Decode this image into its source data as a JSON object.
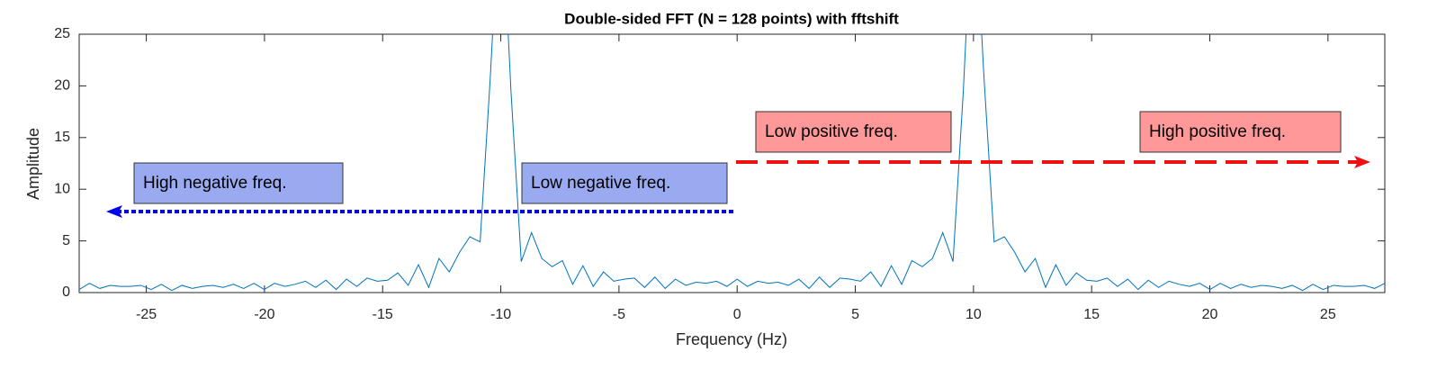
{
  "chart_data": {
    "type": "line",
    "title": "Double-sided FFT (N = 128 points) with fftshift",
    "xlabel": "Frequency (Hz)",
    "ylabel": "Amplitude",
    "x": [
      -27.84,
      -27.405,
      -26.97,
      -26.535,
      -26.1,
      -25.665,
      -25.23,
      -24.795,
      -24.36,
      -23.925,
      -23.49,
      -23.055,
      -22.62,
      -22.185,
      -21.75,
      -21.315,
      -20.88,
      -20.445,
      -20.01,
      -19.575,
      -19.14,
      -18.705,
      -18.27,
      -17.835,
      -17.4,
      -16.965,
      -16.53,
      -16.095,
      -15.66,
      -15.225,
      -14.79,
      -14.355,
      -13.92,
      -13.485,
      -13.05,
      -12.615,
      -12.18,
      -11.745,
      -11.31,
      -10.875,
      -10.44,
      -10.005,
      -9.57,
      -9.135,
      -8.7,
      -8.265,
      -7.83,
      -7.395,
      -6.96,
      -6.525,
      -6.09,
      -5.655,
      -5.22,
      -4.785,
      -4.35,
      -3.915,
      -3.48,
      -3.045,
      -2.61,
      -2.175,
      -1.74,
      -1.305,
      -0.87,
      -0.435,
      0,
      0.435,
      0.87,
      1.305,
      1.74,
      2.175,
      2.61,
      3.045,
      3.48,
      3.915,
      4.35,
      4.785,
      5.22,
      5.655,
      6.09,
      6.525,
      6.96,
      7.395,
      7.83,
      8.265,
      8.7,
      9.135,
      9.57,
      10.005,
      10.44,
      10.875,
      11.31,
      11.745,
      12.18,
      12.615,
      13.05,
      13.485,
      13.92,
      14.355,
      14.79,
      15.225,
      15.66,
      16.095,
      16.53,
      16.965,
      17.4,
      17.835,
      18.27,
      18.705,
      19.14,
      19.575,
      20.01,
      20.445,
      20.88,
      21.315,
      21.75,
      22.185,
      22.62,
      23.055,
      23.49,
      23.925,
      24.36,
      24.795,
      25.23,
      25.665,
      26.1,
      26.535,
      26.97,
      27.405
    ],
    "values": [
      0.3,
      0.9,
      0.4,
      0.7,
      0.6,
      0.6,
      0.7,
      0.3,
      0.8,
      0.2,
      0.7,
      0.4,
      0.6,
      0.7,
      0.5,
      0.8,
      0.4,
      0.9,
      0.3,
      0.9,
      0.6,
      0.8,
      1.1,
      0.5,
      1.2,
      0.3,
      1.3,
      0.6,
      1.4,
      1.1,
      1.2,
      1.9,
      0.7,
      2.7,
      0.5,
      3.3,
      2.0,
      3.9,
      5.4,
      4.9,
      21,
      40,
      19.5,
      3.0,
      5.8,
      3.3,
      2.5,
      3.1,
      0.8,
      2.6,
      0.6,
      2.0,
      1.1,
      1.3,
      1.4,
      0.5,
      1.5,
      0.4,
      1.3,
      0.7,
      1.0,
      0.9,
      1.1,
      0.6,
      1.3,
      0.6,
      1.1,
      0.9,
      1.0,
      0.7,
      1.3,
      0.4,
      1.5,
      0.5,
      1.4,
      1.3,
      1.1,
      2.0,
      0.6,
      2.6,
      0.8,
      3.1,
      2.5,
      3.3,
      5.8,
      3.0,
      19.5,
      40,
      21,
      4.9,
      5.4,
      3.9,
      2.0,
      3.3,
      0.5,
      2.7,
      0.7,
      1.9,
      1.2,
      1.1,
      1.4,
      0.6,
      1.3,
      0.3,
      1.2,
      0.5,
      1.1,
      0.8,
      0.6,
      0.9,
      0.3,
      0.9,
      0.4,
      0.8,
      0.5,
      0.7,
      0.6,
      0.4,
      0.7,
      0.2,
      0.8,
      0.3,
      0.7,
      0.6,
      0.6,
      0.7,
      0.4,
      0.9
    ],
    "color": "#0072bd",
    "xlim": [
      -27.84,
      27.405
    ],
    "ylim": [
      0,
      25
    ],
    "xticks": [
      -25,
      -20,
      -15,
      -10,
      -5,
      0,
      5,
      10,
      15,
      20,
      25
    ],
    "yticks": [
      0,
      5,
      10,
      15,
      20,
      25
    ],
    "annotations": [
      "High negative freq.",
      "Low negative freq.",
      "Low positive freq.",
      "High positive freq."
    ]
  }
}
